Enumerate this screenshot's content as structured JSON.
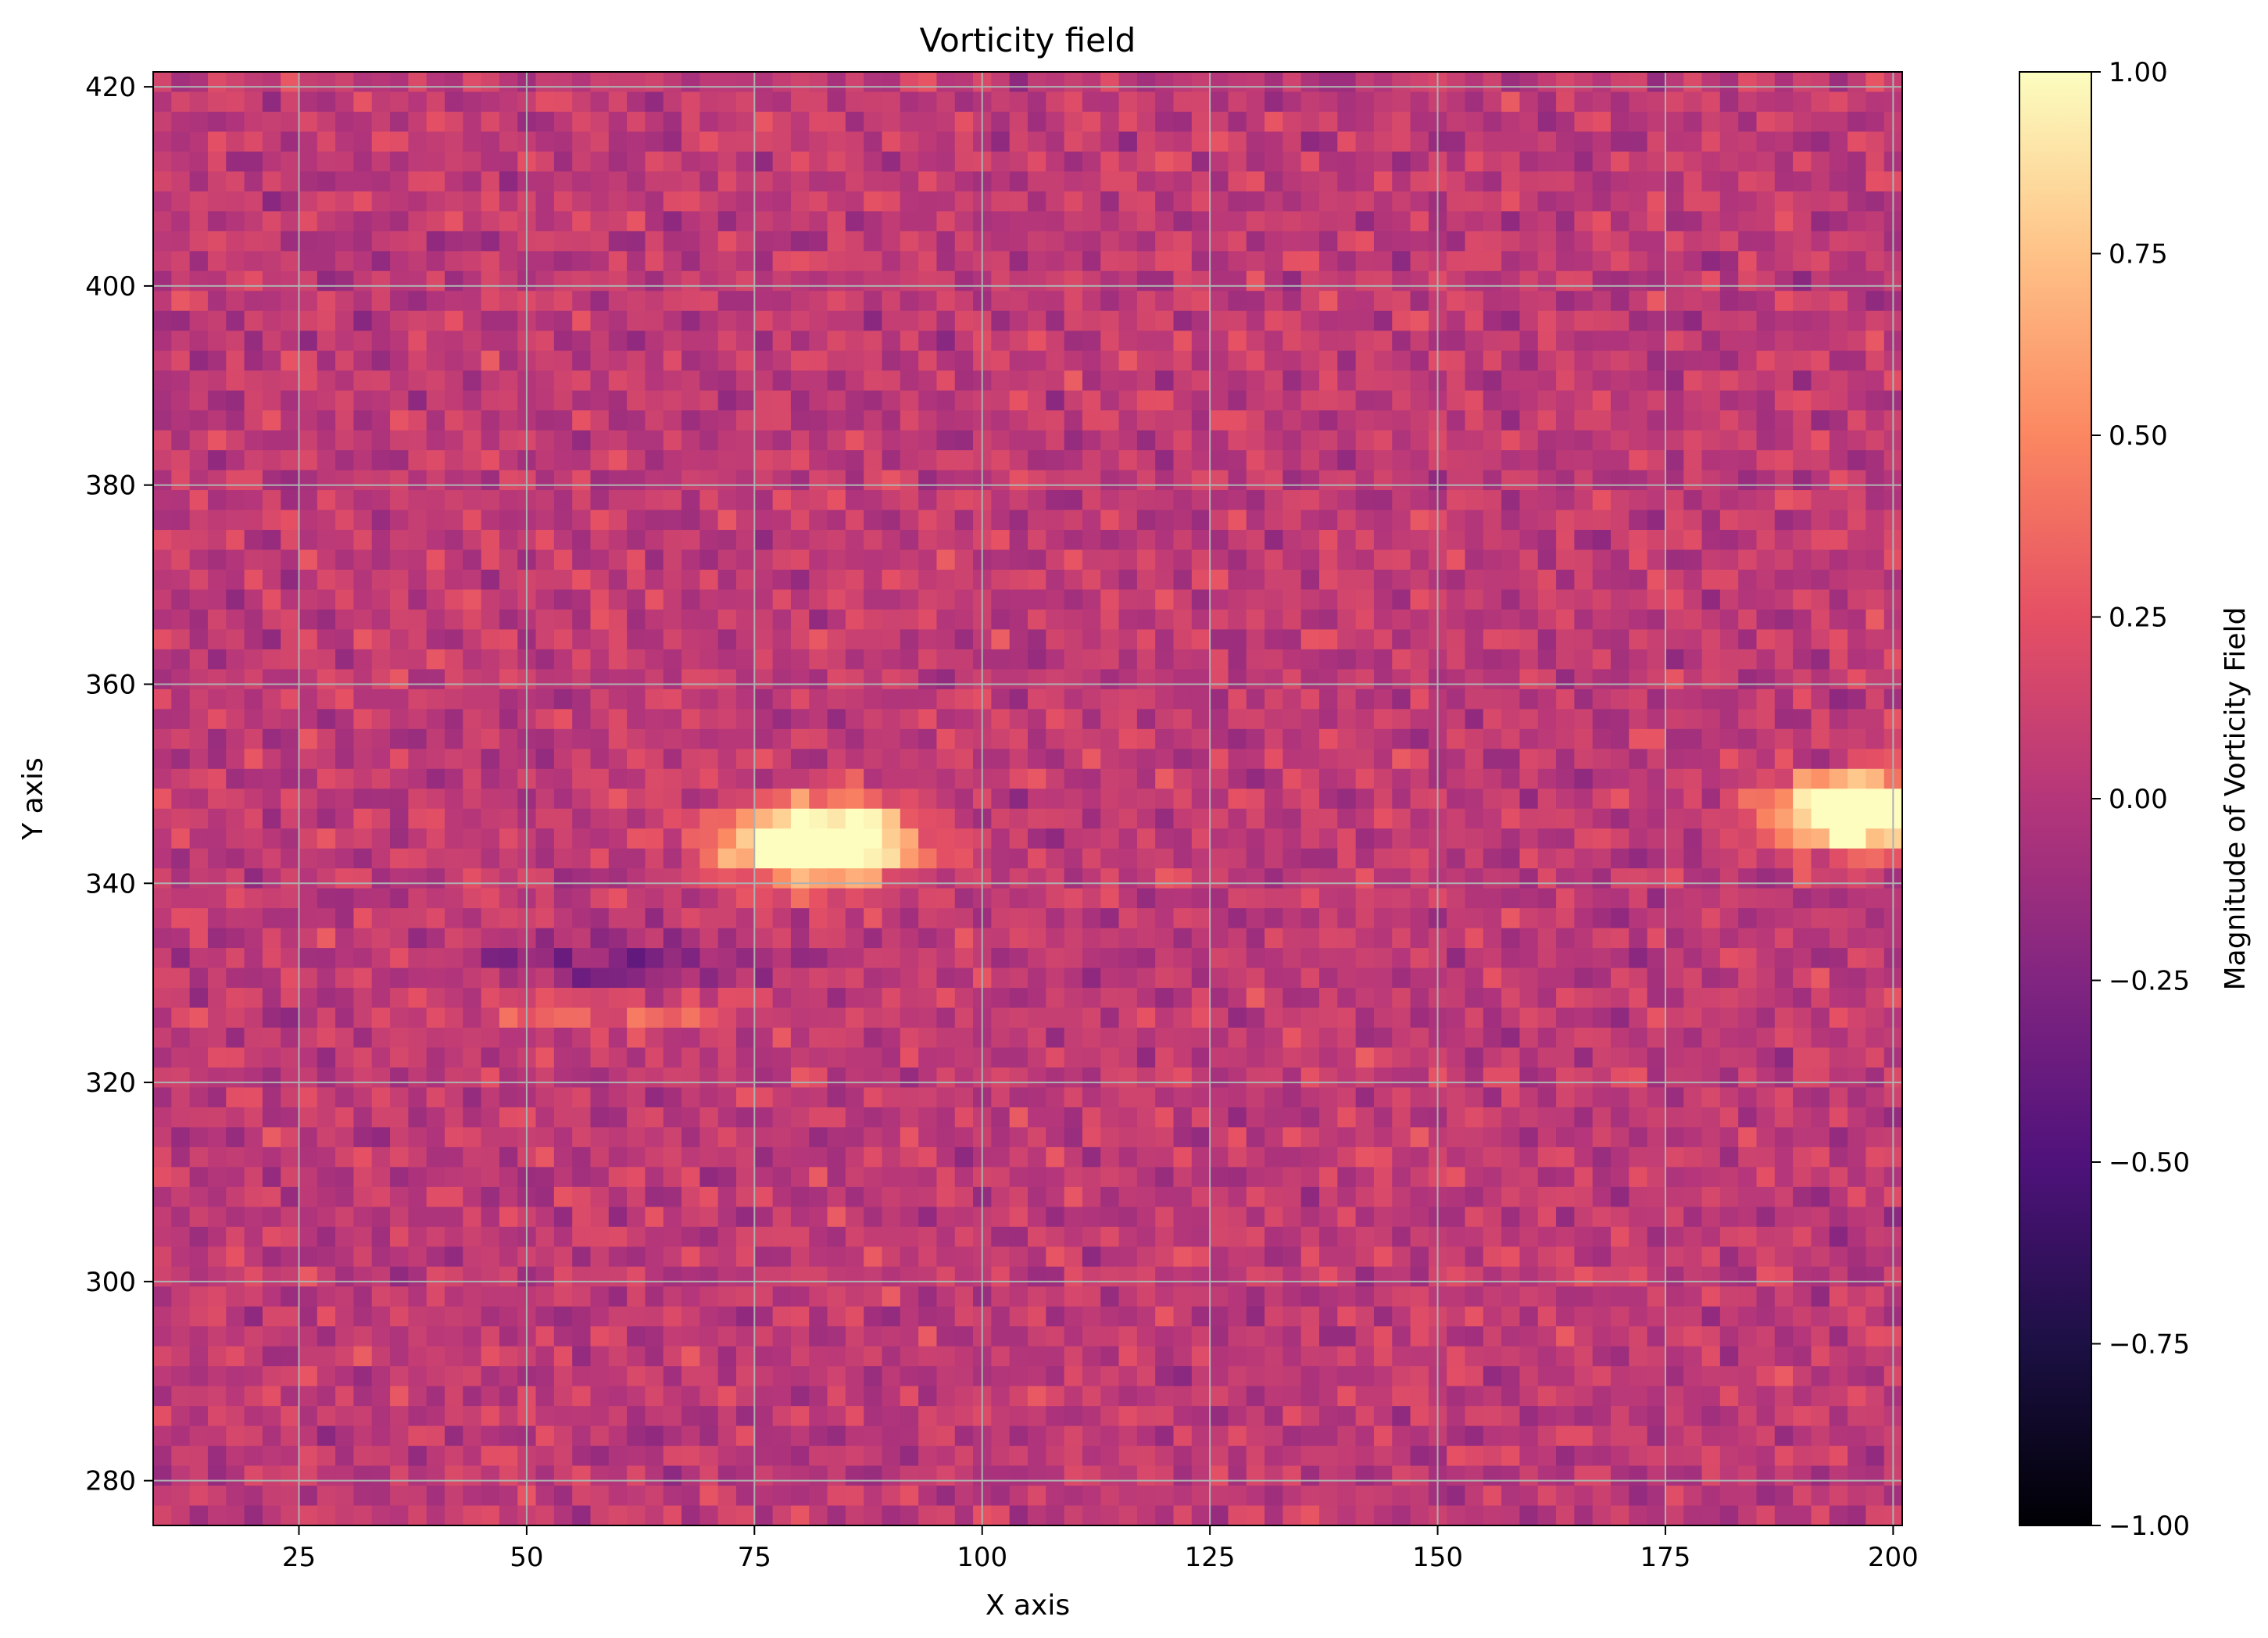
{
  "chart_data": {
    "type": "heatmap",
    "title": "Vorticity field",
    "xlabel": "X axis",
    "ylabel": "Y axis",
    "xlim": [
      9,
      201
    ],
    "ylim": [
      275.5,
      421.5
    ],
    "xticks": [
      25,
      50,
      75,
      100,
      125,
      150,
      175,
      200
    ],
    "yticks": [
      280,
      300,
      320,
      340,
      360,
      380,
      400,
      420
    ],
    "grid": true,
    "grid_color": "#b0b0b0",
    "colormap": "magma",
    "colorbar": {
      "label": "Magnitude of Vorticity Field",
      "range": [
        -1.0,
        1.0
      ],
      "ticks": [
        1.0,
        0.75,
        0.5,
        0.25,
        0.0,
        -0.25,
        -0.5,
        -0.75,
        -1.0
      ],
      "tick_labels": [
        "1.00",
        "0.75",
        "0.50",
        "0.25",
        "0.00",
        "−0.25",
        "−0.50",
        "−0.75",
        "−1.00"
      ]
    },
    "background_level": 0.05,
    "noise_amplitude": 0.22,
    "features": [
      {
        "kind": "hotspot",
        "x": 82,
        "y": 344,
        "sx": 7,
        "sy": 2.6,
        "peak": 1.0
      },
      {
        "kind": "hotspot",
        "x": 196,
        "y": 347,
        "sx": 6,
        "sy": 2.4,
        "peak": 1.0
      },
      {
        "kind": "streak",
        "x": 60,
        "y": 332,
        "sx": 10,
        "sy": 1.6,
        "peak": -0.35
      },
      {
        "kind": "streak",
        "x": 60,
        "y": 327,
        "sx": 12,
        "sy": 1.4,
        "peak": 0.28
      }
    ]
  }
}
